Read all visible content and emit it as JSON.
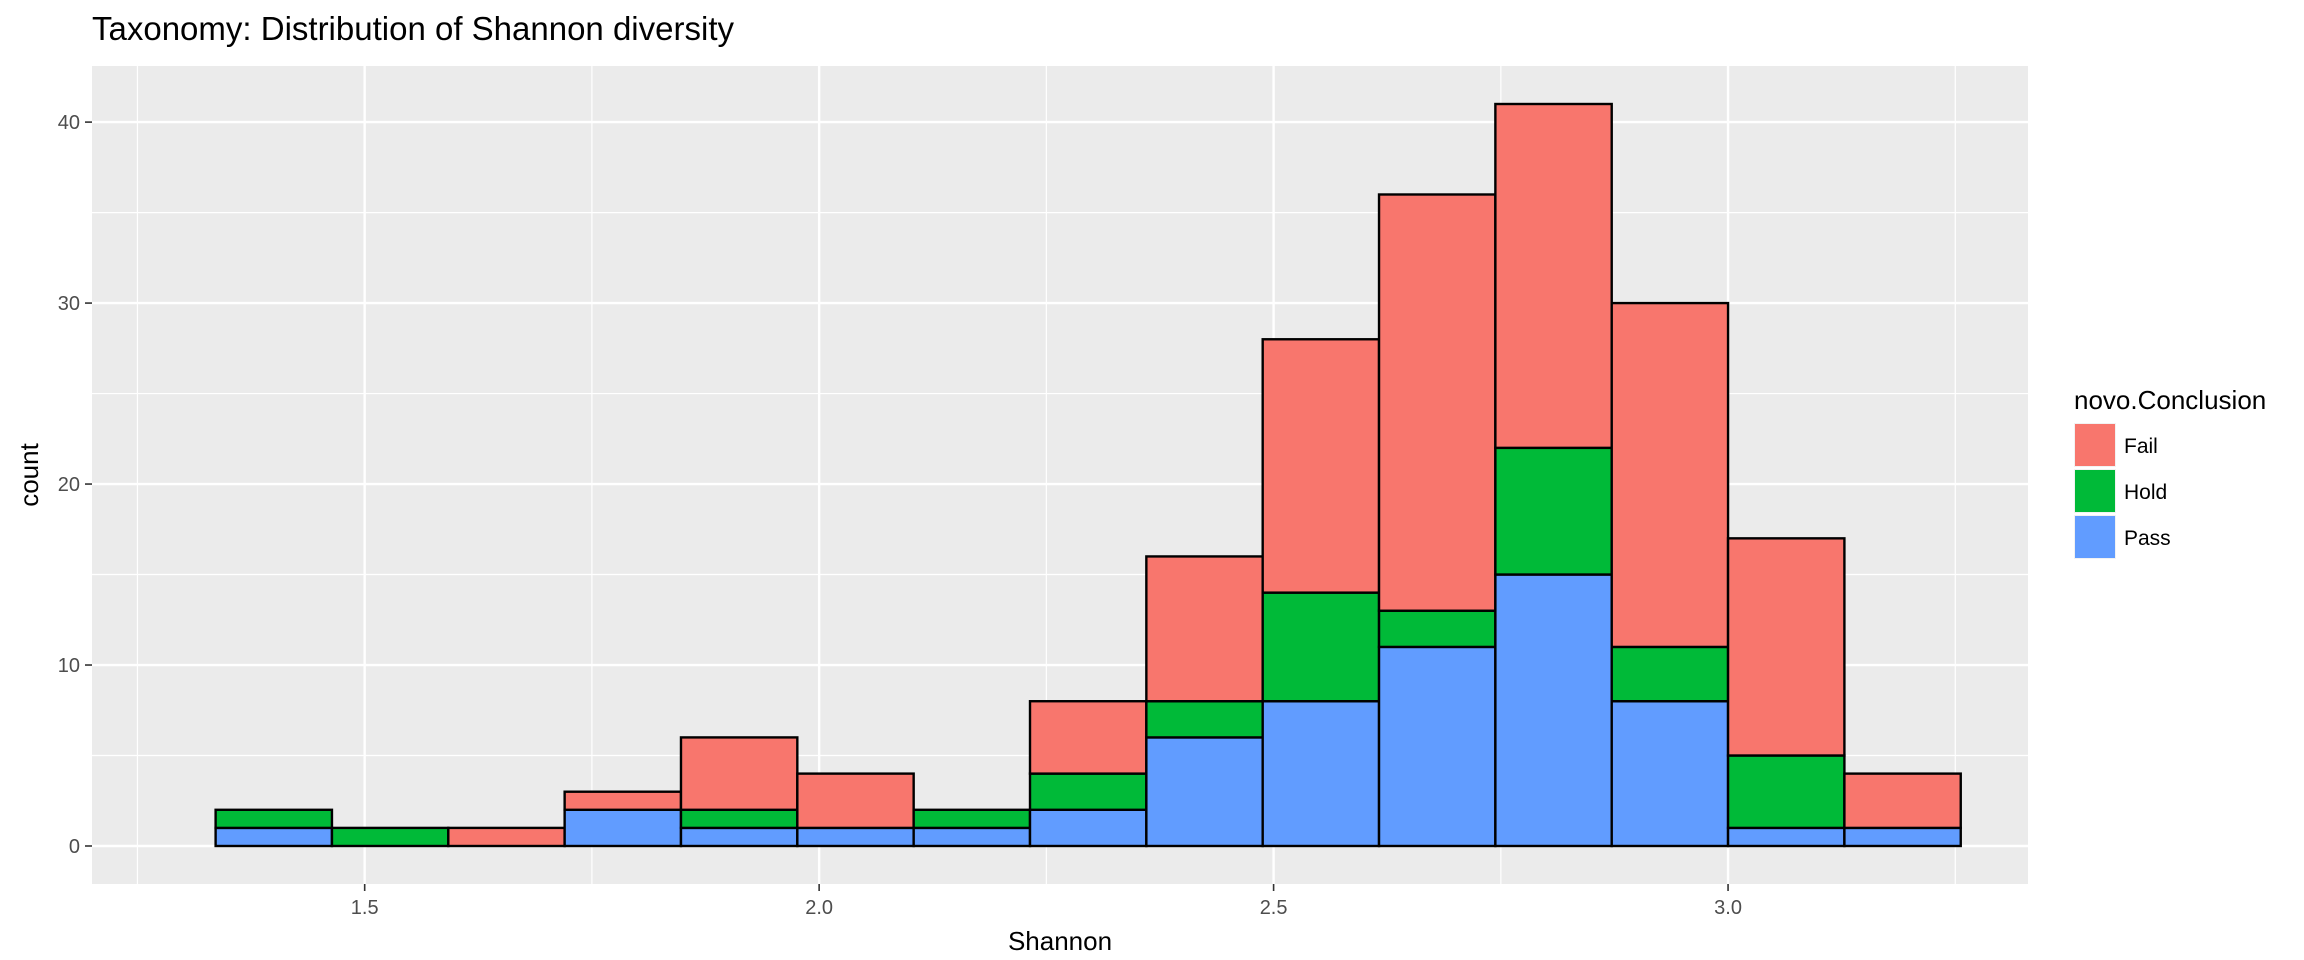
{
  "chart_data": {
    "type": "bar",
    "subtype": "stacked-histogram",
    "title": "Taxonomy: Distribution of Shannon diversity",
    "xlabel": "Shannon",
    "ylabel": "count",
    "xlim": [
      1.2,
      3.33
    ],
    "ylim": [
      -2.1,
      43.1
    ],
    "xticks": [
      1.5,
      2.0,
      2.5,
      3.0
    ],
    "xtick_labels": [
      "1.5",
      "2.0",
      "2.5",
      "3.0"
    ],
    "yticks": [
      0,
      10,
      20,
      30,
      40
    ],
    "ytick_labels": [
      "0",
      "10",
      "20",
      "30",
      "40"
    ],
    "grid": true,
    "legend_position": "right",
    "legend_title": "novo.Conclusion",
    "stack_order": [
      "Pass",
      "Hold",
      "Fail"
    ],
    "bins": [
      [
        1.336,
        1.464
      ],
      [
        1.464,
        1.592
      ],
      [
        1.592,
        1.72
      ],
      [
        1.72,
        1.848
      ],
      [
        1.848,
        1.976
      ],
      [
        1.976,
        2.104
      ],
      [
        2.104,
        2.232
      ],
      [
        2.232,
        2.36
      ],
      [
        2.36,
        2.488
      ],
      [
        2.488,
        2.616
      ],
      [
        2.616,
        2.744
      ],
      [
        2.744,
        2.872
      ],
      [
        2.872,
        3.0
      ],
      [
        3.0,
        3.128
      ],
      [
        3.128,
        3.256
      ]
    ],
    "series": [
      {
        "name": "Fail",
        "color": "#f8766d",
        "values": [
          0,
          0,
          1,
          1,
          4,
          3,
          0,
          4,
          8,
          14,
          23,
          19,
          19,
          12,
          3
        ]
      },
      {
        "name": "Hold",
        "color": "#00ba38",
        "values": [
          1,
          1,
          0,
          0,
          1,
          0,
          1,
          2,
          2,
          6,
          2,
          7,
          3,
          4,
          0
        ]
      },
      {
        "name": "Pass",
        "color": "#619cff",
        "values": [
          1,
          0,
          0,
          2,
          1,
          1,
          1,
          2,
          6,
          8,
          11,
          15,
          8,
          1,
          1
        ]
      }
    ]
  }
}
